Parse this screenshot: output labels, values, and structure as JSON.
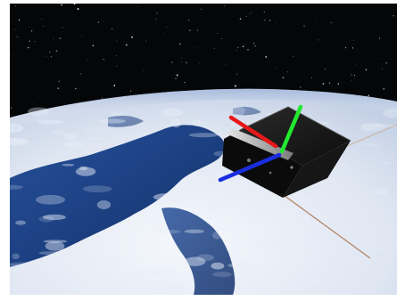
{
  "scene": {
    "kind": "3d-render",
    "subject": "satellite-over-earth",
    "colors": {
      "space": "#050608",
      "ocean": "#1a3d78",
      "cloud": "#e8eef8",
      "satellite_body": "#111111",
      "axis_x": "#e81818",
      "axis_y": "#22e830",
      "axis_z": "#1a2ee0",
      "tether": "#b08060"
    },
    "axes": [
      {
        "id": "x",
        "color_key": "axis_x"
      },
      {
        "id": "y",
        "color_key": "axis_y"
      },
      {
        "id": "z",
        "color_key": "axis_z"
      }
    ]
  }
}
